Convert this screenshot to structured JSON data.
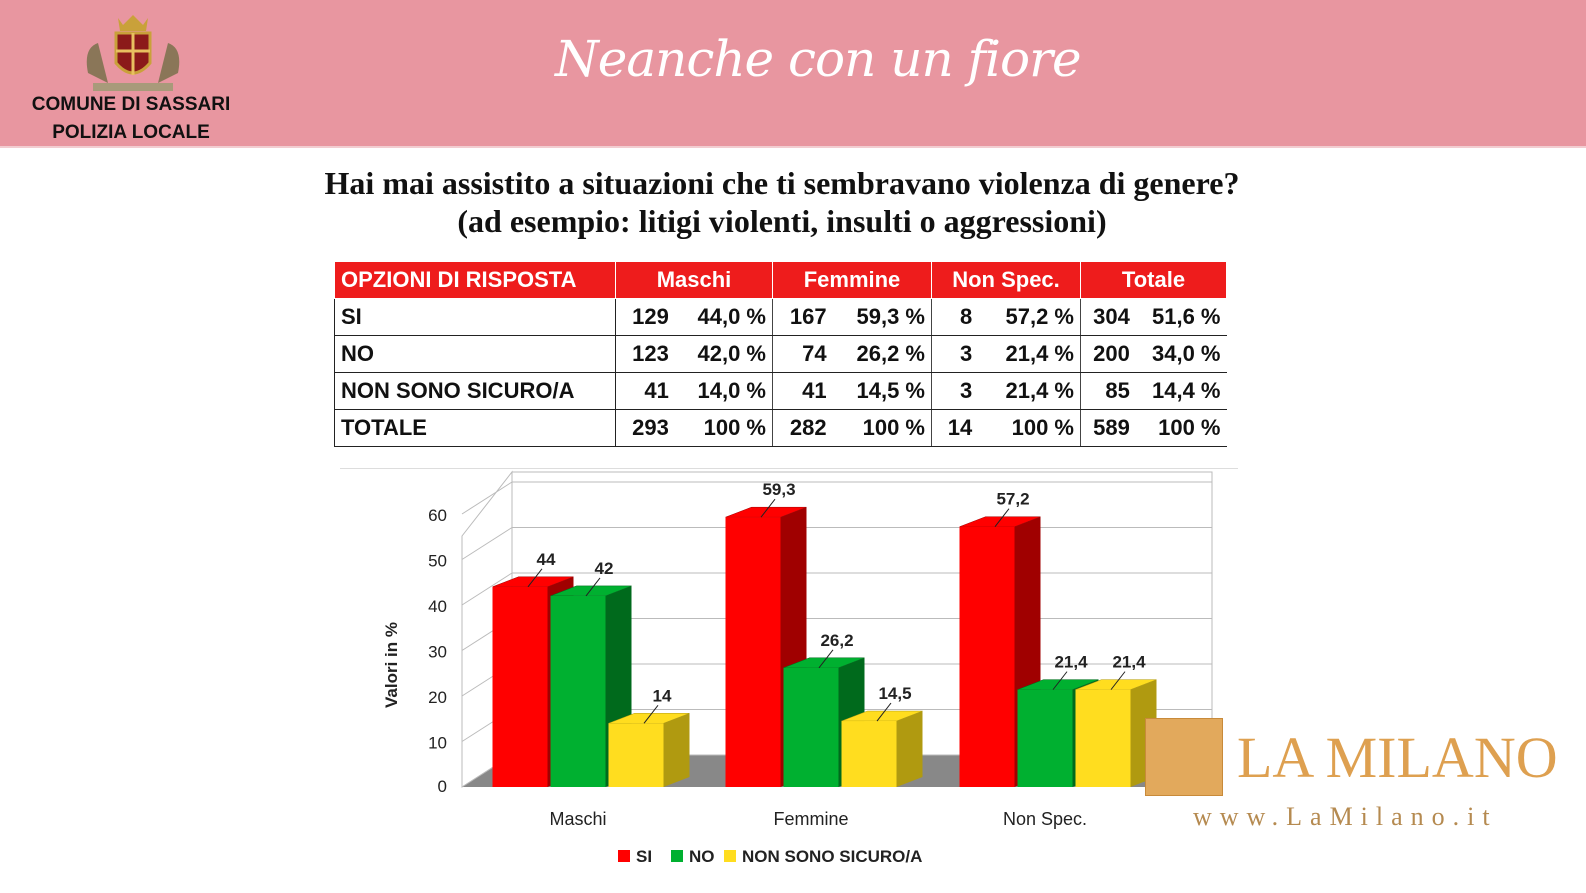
{
  "header": {
    "org_line1": "COMUNE DI SASSARI",
    "org_line2": "POLIZIA LOCALE",
    "tagline": "Neanche con un fiore"
  },
  "title_line1": "Hai mai assistito a situazioni che ti sembravano violenza di genere?",
  "title_line2": "(ad esempio: litigi violenti, insulti o aggressioni)",
  "table": {
    "headers": [
      "OPZIONI DI RISPOSTA",
      "Maschi",
      "Femmine",
      "Non Spec.",
      "Totale"
    ],
    "rows": [
      {
        "label": "SI",
        "cells": [
          "129",
          "44,0 %",
          "167",
          "59,3 %",
          "8",
          "57,2 %",
          "304",
          "51,6 %"
        ]
      },
      {
        "label": "NO",
        "cells": [
          "123",
          "42,0 %",
          "74",
          "26,2 %",
          "3",
          "21,4 %",
          "200",
          "34,0 %"
        ]
      },
      {
        "label": "NON SONO SICURO/A",
        "cells": [
          "41",
          "14,0 %",
          "41",
          "14,5 %",
          "3",
          "21,4 %",
          "85",
          "14,4 %"
        ]
      },
      {
        "label": "TOTALE",
        "cells": [
          "293",
          "100 %",
          "282",
          "100 %",
          "14",
          "100 %",
          "589",
          "100 %"
        ]
      }
    ]
  },
  "chart_data": {
    "type": "bar",
    "categories": [
      "Maschi",
      "Femmine",
      "Non Spec."
    ],
    "series": [
      {
        "name": "SI",
        "color": "#ff0000",
        "side": "#a00000",
        "values": [
          44,
          59.3,
          57.2
        ],
        "labels": [
          "44",
          "59,3",
          "57,2"
        ]
      },
      {
        "name": "NO",
        "color": "#00b030",
        "side": "#006a1c",
        "values": [
          42,
          26.2,
          21.4
        ],
        "labels": [
          "42",
          "26,2",
          "21,4"
        ]
      },
      {
        "name": "NON SONO SICURO/A",
        "color": "#ffdd1f",
        "side": "#b09a10",
        "values": [
          14,
          14.5,
          21.4
        ],
        "labels": [
          "14",
          "14,5",
          "21,4"
        ]
      }
    ],
    "ylabel": "Valori in %",
    "ylim": [
      0,
      60
    ],
    "yticks": [
      "0",
      "10",
      "20",
      "30",
      "40",
      "50",
      "60"
    ],
    "legend": "bottom",
    "grid": true
  },
  "watermark": {
    "name": "LA MILANO",
    "url": "www.LaMilano.it"
  }
}
